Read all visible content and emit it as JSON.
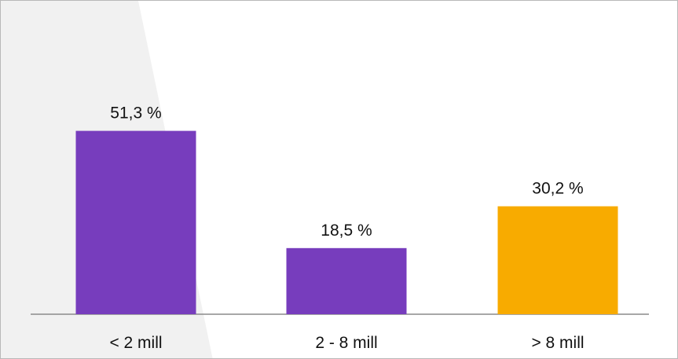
{
  "chart_data": {
    "type": "bar",
    "title": "",
    "xlabel": "",
    "ylabel": "",
    "categories": [
      "< 2 mill",
      "2 - 8 mill",
      "> 8 mill"
    ],
    "values": [
      51.3,
      18.5,
      30.2
    ],
    "value_labels": [
      "51,3 %",
      "18,5 %",
      "30,2 %"
    ],
    "unit": "%",
    "ylim": [
      0,
      60
    ],
    "grid": false,
    "legend": "none",
    "colors": [
      "#773dbd",
      "#773dbd",
      "#f8ab00"
    ]
  },
  "colors": {
    "primary": "#773dbd",
    "highlight": "#f8ab00",
    "axis": "#888888",
    "background": "#ffffff"
  }
}
